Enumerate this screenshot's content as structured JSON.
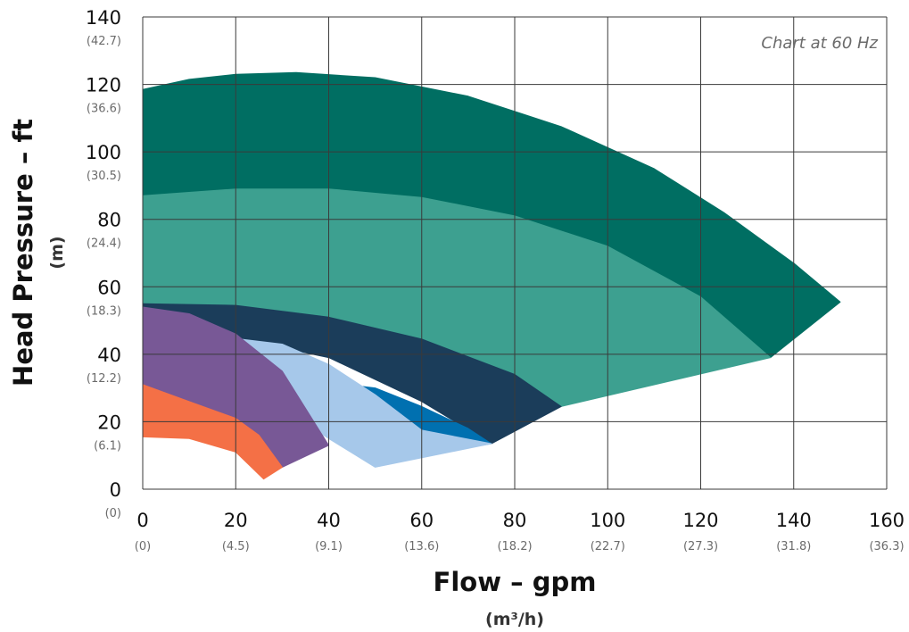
{
  "chart_data": {
    "type": "area",
    "title": "",
    "annotation": "Chart at 60 Hz",
    "xlabel": "Flow – gpm",
    "xlabel_unit": "(m³/h)",
    "ylabel": "Head Pressure – ft",
    "ylabel_unit": "(m)",
    "xlim": [
      0,
      160
    ],
    "ylim": [
      0,
      140
    ],
    "grid": true,
    "x_ticks": [
      0,
      20,
      40,
      60,
      80,
      100,
      120,
      140,
      160
    ],
    "x_tick_labels": [
      "0",
      "20",
      "40",
      "60",
      "80",
      "100",
      "120",
      "140",
      "160"
    ],
    "x_tick_sublabels": [
      "(0)",
      "(4.5)",
      "(9.1)",
      "(13.6)",
      "(18.2)",
      "(22.7)",
      "(27.3)",
      "(31.8)",
      "(36.3)"
    ],
    "y_ticks": [
      0,
      20,
      40,
      60,
      80,
      100,
      120,
      140
    ],
    "y_tick_labels": [
      "0",
      "20",
      "40",
      "60",
      "80",
      "100",
      "120",
      "140"
    ],
    "y_tick_sublabels": [
      "(0)",
      "(6.1)",
      "(12.2)",
      "(18.3)",
      "(24.4)",
      "(30.5)",
      "(36.6)",
      "(42.7)"
    ],
    "series": [
      {
        "color": "#006e62",
        "upper": [
          [
            0,
            118.5
          ],
          [
            10,
            121.5
          ],
          [
            20,
            123
          ],
          [
            33,
            123.5
          ],
          [
            50,
            122
          ],
          [
            70,
            116.5
          ],
          [
            90,
            107.5
          ],
          [
            110,
            95
          ],
          [
            125,
            82
          ],
          [
            140,
            67
          ],
          [
            150,
            55.5
          ]
        ],
        "lower": [
          [
            135,
            39
          ],
          [
            120,
            57
          ],
          [
            100,
            72
          ],
          [
            80,
            81
          ],
          [
            60,
            86.5
          ],
          [
            40,
            89
          ],
          [
            20,
            89
          ],
          [
            0,
            87
          ]
        ]
      },
      {
        "color": "#3da090",
        "upper": [
          [
            0,
            87
          ],
          [
            20,
            89
          ],
          [
            40,
            89
          ],
          [
            60,
            86.5
          ],
          [
            80,
            81
          ],
          [
            100,
            72
          ],
          [
            120,
            57
          ],
          [
            135,
            39
          ]
        ],
        "lower": [
          [
            90,
            24.5
          ],
          [
            80,
            34
          ],
          [
            60,
            44.5
          ],
          [
            40,
            51
          ],
          [
            20,
            54.5
          ],
          [
            0,
            55
          ]
        ]
      },
      {
        "color": "#1b3d5a",
        "upper": [
          [
            0,
            55
          ],
          [
            20,
            54.5
          ],
          [
            40,
            51
          ],
          [
            60,
            44.5
          ],
          [
            80,
            34
          ],
          [
            90,
            24.5
          ]
        ],
        "lower": [
          [
            75,
            13.5
          ],
          [
            60,
            26
          ],
          [
            40,
            39
          ],
          [
            21,
            44.5
          ],
          [
            0,
            54
          ]
        ]
      },
      {
        "color": "#0070b0",
        "upper": [
          [
            44,
            31
          ],
          [
            50,
            30
          ],
          [
            60,
            24.5
          ],
          [
            70,
            18
          ],
          [
            75,
            13.5
          ]
        ],
        "lower": [
          [
            62,
            10.5
          ],
          [
            56,
            15
          ],
          [
            50,
            20
          ],
          [
            44,
            24
          ]
        ]
      },
      {
        "color": "#a6c8ea",
        "upper": [
          [
            21,
            44.5
          ],
          [
            30,
            43
          ],
          [
            40,
            37
          ],
          [
            50,
            28
          ],
          [
            60,
            17.5
          ],
          [
            75,
            13.5
          ]
        ],
        "lower": [
          [
            50,
            6.5
          ],
          [
            40,
            15
          ],
          [
            30,
            24
          ],
          [
            21,
            30
          ]
        ]
      },
      {
        "color": "#785896",
        "upper": [
          [
            0,
            54
          ],
          [
            10,
            52
          ],
          [
            20,
            46
          ],
          [
            30,
            35
          ],
          [
            40,
            13
          ]
        ],
        "lower": [
          [
            30,
            6.5
          ],
          [
            25,
            16
          ],
          [
            20,
            21
          ],
          [
            10,
            26
          ],
          [
            0,
            31
          ]
        ]
      },
      {
        "color": "#f47046",
        "upper": [
          [
            0,
            31
          ],
          [
            10,
            26
          ],
          [
            20,
            21
          ],
          [
            25,
            16
          ],
          [
            30,
            6.5
          ]
        ],
        "lower": [
          [
            26,
            3
          ],
          [
            20,
            11
          ],
          [
            10,
            15
          ],
          [
            0,
            15.5
          ]
        ]
      }
    ]
  }
}
